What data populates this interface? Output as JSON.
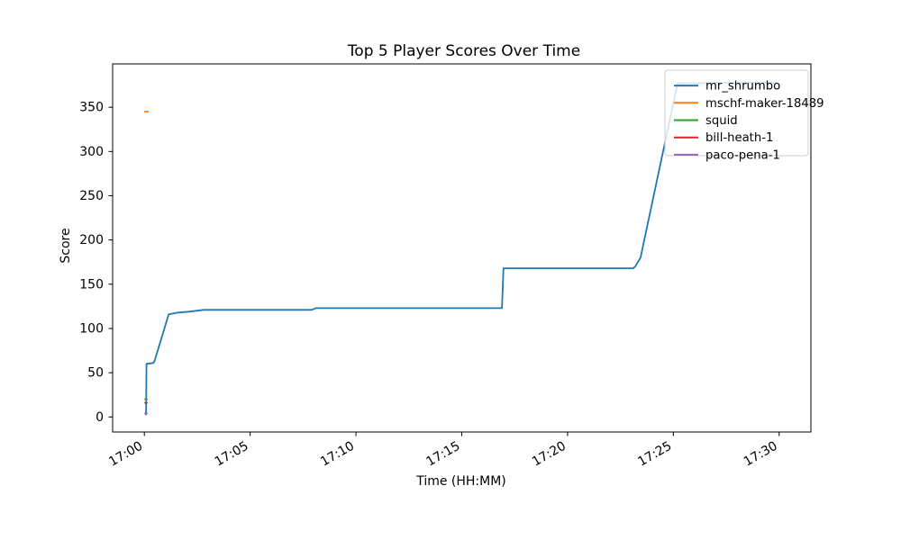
{
  "chart_data": {
    "type": "line",
    "title": "Top 5 Player Scores Over Time",
    "xlabel": "Time (HH:MM)",
    "ylabel": "Score",
    "x_tick_labels": [
      "17:00",
      "17:05",
      "17:10",
      "17:15",
      "17:20",
      "17:25",
      "17:30"
    ],
    "x_tick_minutes": [
      0,
      5,
      10,
      15,
      20,
      25,
      30
    ],
    "x_tick_rotation_deg": 30,
    "y_ticks": [
      0,
      50,
      100,
      150,
      200,
      250,
      300,
      350
    ],
    "xlim_minutes": [
      -1.5,
      31.5
    ],
    "ylim": [
      -17,
      399
    ],
    "grid": false,
    "legend_position": "upper right",
    "axis_color": "#000000",
    "legend_border_color": "#cccccc",
    "series": [
      {
        "name": "mr_shrumbo",
        "color": "#1f77b4",
        "points": [
          [
            0.08,
            2
          ],
          [
            0.1,
            60
          ],
          [
            0.42,
            61
          ],
          [
            0.48,
            63
          ],
          [
            1.15,
            116
          ],
          [
            1.6,
            118
          ],
          [
            2.1,
            119
          ],
          [
            2.8,
            121
          ],
          [
            7.9,
            121
          ],
          [
            8.1,
            123
          ],
          [
            16.9,
            123
          ],
          [
            16.97,
            168
          ],
          [
            23.1,
            168
          ],
          [
            23.2,
            170
          ],
          [
            23.45,
            180
          ],
          [
            25.2,
            377
          ],
          [
            29.9,
            378
          ]
        ]
      },
      {
        "name": "mschf-maker-18489",
        "color": "#ff7f0e",
        "points": [
          [
            0.0,
            345
          ],
          [
            0.2,
            345
          ]
        ]
      },
      {
        "name": "squid",
        "color": "#2ca02c",
        "points": [
          [
            0.0,
            20
          ],
          [
            0.15,
            20
          ]
        ]
      },
      {
        "name": "bill-heath-1",
        "color": "#d62728",
        "points": [
          [
            0.0,
            16
          ],
          [
            0.15,
            16
          ]
        ]
      },
      {
        "name": "paco-pena-1",
        "color": "#9467bd",
        "points": [
          [
            0.0,
            4
          ],
          [
            0.15,
            4
          ]
        ]
      }
    ]
  }
}
